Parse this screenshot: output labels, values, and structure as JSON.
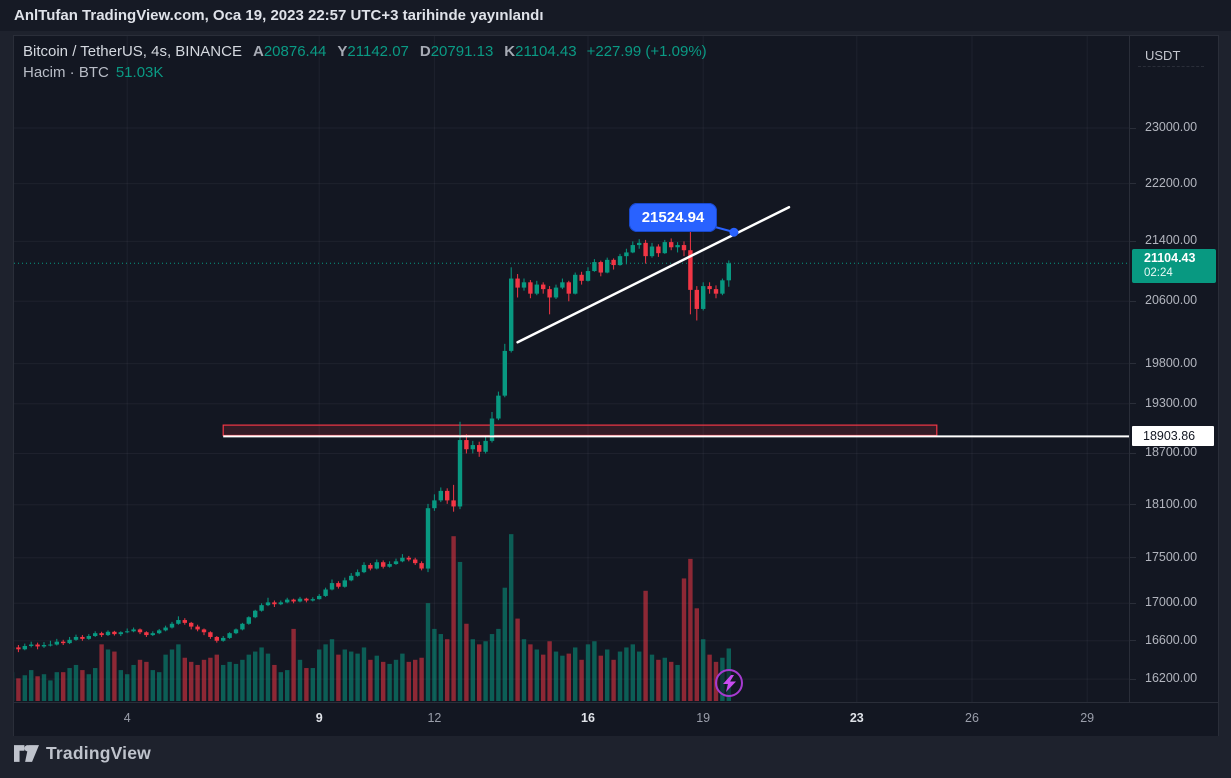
{
  "attribution": "AnlTufan TradingView.com, Oca 19, 2023 22:57 UTC+3 tarihinde yayınlandı",
  "header": {
    "title": "Bitcoin / TetherUS, 4s, BINANCE",
    "ohlc": [
      {
        "k": "A",
        "v": "20876.44"
      },
      {
        "k": "Y",
        "v": "21142.07"
      },
      {
        "k": "D",
        "v": "20791.13"
      },
      {
        "k": "K",
        "v": "21104.43"
      }
    ],
    "change": "+227.99 (+1.09%)",
    "volume_label": "Hacim · BTC",
    "volume_value": "51.03K"
  },
  "axis": {
    "currency": "USDT",
    "current_price": "21104.43",
    "countdown": "02:24",
    "level_label": "18903.86"
  },
  "logo_text": "TradingView",
  "colors": {
    "up": "#089981",
    "down": "#f23645",
    "accent_blue": "#2962ff",
    "purple": "#a63ad0",
    "bg": "#131722",
    "outer": "#1e222d",
    "white_line": "#ffffff"
  },
  "chart_data": {
    "type": "candlestick",
    "symbol": "Bitcoin / TetherUS",
    "interval": "4h",
    "exchange": "BINANCE",
    "start": "2023-01-01 00:00",
    "y_scale": "log",
    "grid": true,
    "volume_unit": "K BTC",
    "x_ticks": [
      {
        "label": "4",
        "day": 4,
        "bold": false
      },
      {
        "label": "9",
        "day": 9,
        "bold": true
      },
      {
        "label": "12",
        "day": 12,
        "bold": false
      },
      {
        "label": "16",
        "day": 16,
        "bold": true
      },
      {
        "label": "19",
        "day": 19,
        "bold": false
      },
      {
        "label": "23",
        "day": 23,
        "bold": true
      },
      {
        "label": "26",
        "day": 26,
        "bold": false
      },
      {
        "label": "29",
        "day": 29,
        "bold": false
      }
    ],
    "y_ticks": [
      "23000.00",
      "22200.00",
      "21400.00",
      "20600.00",
      "19800.00",
      "19300.00",
      "18700.00",
      "18100.00",
      "17500.00",
      "17000.00",
      "16600.00",
      "16200.00"
    ],
    "last_price": 21104.43,
    "level_line": {
      "price": 18903.86
    },
    "zone_box": {
      "from_bar": 33,
      "to_bar": 144.5,
      "price_top": 19040,
      "price_bottom": 18915
    },
    "trendline": {
      "from_bar": 79,
      "from_price": 20070,
      "to_bar": 121.4,
      "to_price": 21870
    },
    "callout": {
      "label": "21524.94",
      "bar": 112.8,
      "price": 21524.94
    },
    "marker": {
      "type": "flash",
      "bar": 112
    },
    "candles": [
      [
        16510,
        16560,
        16470,
        16530,
        28
      ],
      [
        16530,
        16555,
        16480,
        16510,
        22
      ],
      [
        16510,
        16570,
        16500,
        16545,
        25
      ],
      [
        16545,
        16590,
        16530,
        16560,
        30
      ],
      [
        16560,
        16580,
        16510,
        16540,
        24
      ],
      [
        16540,
        16585,
        16525,
        16555,
        26
      ],
      [
        16555,
        16600,
        16540,
        16560,
        20
      ],
      [
        16560,
        16620,
        16550,
        16590,
        28
      ],
      [
        16590,
        16610,
        16555,
        16575,
        28
      ],
      [
        16575,
        16640,
        16565,
        16610,
        32
      ],
      [
        16610,
        16665,
        16600,
        16640,
        35
      ],
      [
        16640,
        16660,
        16600,
        16620,
        30
      ],
      [
        16620,
        16670,
        16610,
        16650,
        26
      ],
      [
        16650,
        16700,
        16640,
        16680,
        32
      ],
      [
        16680,
        16695,
        16640,
        16660,
        55
      ],
      [
        16660,
        16710,
        16650,
        16695,
        50
      ],
      [
        16695,
        16705,
        16655,
        16670,
        48
      ],
      [
        16670,
        16700,
        16650,
        16690,
        30
      ],
      [
        16690,
        16730,
        16680,
        16700,
        26
      ],
      [
        16700,
        16740,
        16690,
        16720,
        35
      ],
      [
        16720,
        16730,
        16670,
        16690,
        40
      ],
      [
        16690,
        16700,
        16640,
        16660,
        38
      ],
      [
        16660,
        16700,
        16650,
        16680,
        30
      ],
      [
        16680,
        16725,
        16670,
        16710,
        28
      ],
      [
        16710,
        16760,
        16700,
        16740,
        45
      ],
      [
        16740,
        16800,
        16730,
        16780,
        50
      ],
      [
        16780,
        16860,
        16770,
        16820,
        55
      ],
      [
        16820,
        16840,
        16770,
        16790,
        42
      ],
      [
        16790,
        16800,
        16720,
        16750,
        38
      ],
      [
        16750,
        16770,
        16700,
        16720,
        35
      ],
      [
        16720,
        16730,
        16660,
        16690,
        40
      ],
      [
        16690,
        16700,
        16620,
        16640,
        42
      ],
      [
        16640,
        16650,
        16580,
        16600,
        45
      ],
      [
        16600,
        16650,
        16590,
        16630,
        35
      ],
      [
        16630,
        16690,
        16620,
        16680,
        38
      ],
      [
        16680,
        16730,
        16670,
        16720,
        36
      ],
      [
        16720,
        16790,
        16710,
        16780,
        40
      ],
      [
        16780,
        16860,
        16770,
        16850,
        45
      ],
      [
        16850,
        16930,
        16840,
        16920,
        48
      ],
      [
        16920,
        17000,
        16910,
        16980,
        52
      ],
      [
        16980,
        17060,
        16970,
        17010,
        46
      ],
      [
        17010,
        17030,
        16960,
        16990,
        35
      ],
      [
        16990,
        17030,
        16980,
        17010,
        28
      ],
      [
        17010,
        17060,
        17000,
        17040,
        30
      ],
      [
        17040,
        17050,
        17000,
        17020,
        70
      ],
      [
        17020,
        17070,
        17010,
        17050,
        40
      ],
      [
        17050,
        17060,
        17010,
        17030,
        32
      ],
      [
        17030,
        17065,
        17020,
        17045,
        32
      ],
      [
        17045,
        17100,
        17040,
        17080,
        50
      ],
      [
        17080,
        17170,
        17070,
        17150,
        55
      ],
      [
        17150,
        17260,
        17140,
        17220,
        60
      ],
      [
        17220,
        17240,
        17160,
        17180,
        45
      ],
      [
        17180,
        17280,
        17170,
        17250,
        50
      ],
      [
        17250,
        17330,
        17240,
        17300,
        48
      ],
      [
        17300,
        17370,
        17290,
        17340,
        46
      ],
      [
        17340,
        17450,
        17330,
        17420,
        52
      ],
      [
        17420,
        17440,
        17360,
        17380,
        40
      ],
      [
        17380,
        17480,
        17370,
        17450,
        44
      ],
      [
        17450,
        17470,
        17380,
        17400,
        38
      ],
      [
        17400,
        17460,
        17390,
        17430,
        36
      ],
      [
        17430,
        17490,
        17420,
        17460,
        40
      ],
      [
        17460,
        17540,
        17450,
        17500,
        46
      ],
      [
        17500,
        17520,
        17460,
        17480,
        38
      ],
      [
        17480,
        17500,
        17420,
        17440,
        40
      ],
      [
        17440,
        17460,
        17360,
        17380,
        42
      ],
      [
        17380,
        18110,
        17340,
        18060,
        95
      ],
      [
        18060,
        18220,
        18030,
        18150,
        70
      ],
      [
        18150,
        18300,
        18130,
        18260,
        65
      ],
      [
        18260,
        18290,
        18110,
        18150,
        60
      ],
      [
        18150,
        18330,
        18020,
        18080,
        160
      ],
      [
        18080,
        19080,
        18050,
        18860,
        135
      ],
      [
        18860,
        18930,
        18700,
        18750,
        75
      ],
      [
        18750,
        18850,
        18700,
        18800,
        60
      ],
      [
        18800,
        18840,
        18660,
        18720,
        55
      ],
      [
        18720,
        18900,
        18700,
        18850,
        58
      ],
      [
        18850,
        19200,
        18830,
        19120,
        65
      ],
      [
        19120,
        19450,
        19100,
        19400,
        70
      ],
      [
        19400,
        20050,
        19380,
        19960,
        110
      ],
      [
        19960,
        21050,
        19940,
        20900,
        162
      ],
      [
        20900,
        20960,
        20650,
        20780,
        80
      ],
      [
        20780,
        20900,
        20740,
        20850,
        60
      ],
      [
        20850,
        20880,
        20640,
        20700,
        55
      ],
      [
        20700,
        20870,
        20680,
        20820,
        50
      ],
      [
        20820,
        20850,
        20700,
        20760,
        45
      ],
      [
        20760,
        20800,
        20430,
        20650,
        58
      ],
      [
        20650,
        20820,
        20630,
        20780,
        48
      ],
      [
        20780,
        20900,
        20760,
        20850,
        44
      ],
      [
        20850,
        20870,
        20600,
        20700,
        46
      ],
      [
        20700,
        20980,
        20690,
        20950,
        52
      ],
      [
        20950,
        20990,
        20820,
        20870,
        40
      ],
      [
        20870,
        21050,
        20860,
        21000,
        55
      ],
      [
        21000,
        21160,
        20990,
        21120,
        58
      ],
      [
        21120,
        21140,
        20930,
        20980,
        44
      ],
      [
        20980,
        21180,
        20970,
        21150,
        50
      ],
      [
        21150,
        21170,
        21020,
        21080,
        40
      ],
      [
        21080,
        21230,
        21070,
        21200,
        48
      ],
      [
        21200,
        21300,
        21090,
        21250,
        52
      ],
      [
        21250,
        21400,
        21240,
        21350,
        55
      ],
      [
        21350,
        21430,
        21300,
        21380,
        48
      ],
      [
        21380,
        21420,
        21100,
        21200,
        107
      ],
      [
        21200,
        21380,
        21180,
        21330,
        45
      ],
      [
        21330,
        21360,
        21190,
        21240,
        40
      ],
      [
        21240,
        21420,
        21230,
        21390,
        42
      ],
      [
        21390,
        21440,
        21280,
        21320,
        38
      ],
      [
        21320,
        21390,
        21250,
        21350,
        35
      ],
      [
        21350,
        21400,
        21200,
        21280,
        119
      ],
      [
        21280,
        21650,
        20430,
        20750,
        138
      ],
      [
        20750,
        20800,
        20350,
        20500,
        90
      ],
      [
        20500,
        20850,
        20480,
        20800,
        60
      ],
      [
        20800,
        20850,
        20700,
        20760,
        45
      ],
      [
        20760,
        20810,
        20640,
        20700,
        38
      ],
      [
        20700,
        20900,
        20680,
        20876.44,
        42
      ],
      [
        20876.44,
        21142.07,
        20791.13,
        21104.43,
        51.03
      ]
    ]
  }
}
